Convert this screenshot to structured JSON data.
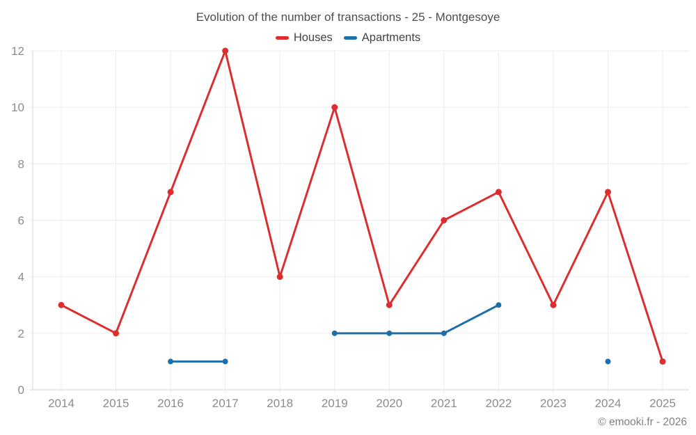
{
  "header": {
    "title": "Evolution of the number of transactions - 25 - Montgesoye"
  },
  "legend": {
    "items": [
      {
        "label": "Houses",
        "color": "#dc2e2e"
      },
      {
        "label": "Apartments",
        "color": "#1d6fa5"
      }
    ]
  },
  "footer": {
    "watermark": "© emooki.fr - 2026"
  },
  "chart_data": {
    "type": "line",
    "title": "Evolution of the number of transactions - 25 - Montgesoye",
    "x": [
      2014,
      2015,
      2016,
      2017,
      2018,
      2019,
      2020,
      2021,
      2022,
      2023,
      2024,
      2025
    ],
    "series": [
      {
        "name": "Houses",
        "color": "#dc2e2e",
        "values": [
          3,
          2,
          7,
          12,
          4,
          10,
          3,
          6,
          7,
          3,
          7,
          1
        ]
      },
      {
        "name": "Apartments",
        "color": "#1d6fa5",
        "values": [
          null,
          null,
          1,
          1,
          null,
          2,
          2,
          2,
          3,
          null,
          1,
          null
        ]
      }
    ],
    "ylim": [
      0,
      12
    ],
    "yticks": [
      0,
      2,
      4,
      6,
      8,
      10,
      12
    ],
    "grid": true,
    "legend_position": "top",
    "xlabel": "",
    "ylabel": ""
  },
  "colors": {
    "background": "#ffffff",
    "grid": "#ececec",
    "axis": "#d6d6d6",
    "tick_text": "#8c8c8c",
    "title_text": "#4d4d4d",
    "legend_text": "#444444",
    "watermark_text": "#808080"
  }
}
